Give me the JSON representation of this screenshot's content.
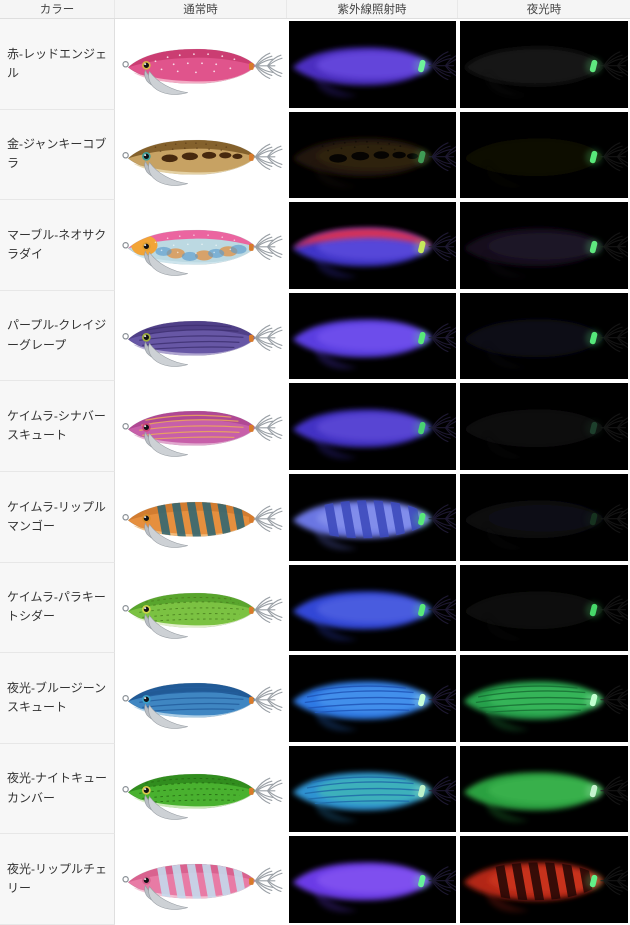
{
  "table": {
    "columns": [
      "カラー",
      "通常時",
      "紫外線照射時",
      "夜光時"
    ]
  },
  "colors": {
    "header_bg": "#f5f5f5",
    "label_bg": "#f7f7f7",
    "grid_border": "#e3e3e3",
    "photo_dark_bg": "#000000",
    "photo_light_bg": "#ffffff",
    "text": "#333333",
    "glow_spot_green": "#5fe87f"
  },
  "rows": [
    {
      "label": "赤-レッドエンジェル",
      "normal": {
        "body": "#e0548c",
        "back": "#c93b6f",
        "belly": "#f3b3c9",
        "pattern": "sparkle",
        "patternColor": "#ffffff",
        "eyeRing": "#d9b34a"
      },
      "uv": {
        "body": "#4b2fc0",
        "core": "#7a58ee",
        "pattern": "none",
        "patternColor": "",
        "spot": "#6ef29b"
      },
      "night": {
        "body": "#121212",
        "core": "#1c1c1c",
        "pattern": "none",
        "patternColor": "",
        "spot": "#5fe87f"
      }
    },
    {
      "label": "金-ジャンキーコブラ",
      "normal": {
        "body": "#c7a263",
        "back": "#7c5a26",
        "belly": "#e6d5a9",
        "pattern": "spots",
        "patternColor": "#47290e",
        "eyeRing": "#3f9f9a"
      },
      "uv": {
        "body": "#231708",
        "core": "#3a2a10",
        "pattern": "spots",
        "patternColor": "#060402",
        "spot": "#3f9a55"
      },
      "night": {
        "body": "#0b0906",
        "core": "#110d08",
        "pattern": "none",
        "patternColor": "",
        "spot": "#58e87a"
      }
    },
    {
      "label": "マーブル-ネオサクラダイ",
      "normal": {
        "body": "#bcd9e2",
        "back": "#ef5899",
        "belly": "#cfe6ee",
        "pattern": "marble",
        "patternColor": "#e08f41",
        "head": "#f2a437",
        "blob2": "#5b9bcc",
        "eyeRing": "#e0a030"
      },
      "uv": {
        "body": "#4135c8",
        "core": "#6a55e8",
        "pattern": "uvtop",
        "patternColor": "#e03050",
        "spot": "#c6e85c"
      },
      "night": {
        "body": "#150e1b",
        "core": "#221531",
        "pattern": "none",
        "patternColor": "",
        "spot": "#5fe87f"
      }
    },
    {
      "label": "パープル-クレイジーグレープ",
      "normal": {
        "body": "#6757a5",
        "back": "#4e3e85",
        "belly": "#b3a9d3",
        "pattern": "streaks",
        "patternColor": "#3f3172",
        "eyeRing": "#9fae3c"
      },
      "uv": {
        "body": "#5a3ce0",
        "core": "#7e5cf4",
        "pattern": "none",
        "patternColor": "",
        "spot": "#58e87a"
      },
      "night": {
        "body": "#0d0c13",
        "core": "#14121d",
        "pattern": "none",
        "patternColor": "",
        "spot": "#55e87a"
      }
    },
    {
      "label": "ケイムラ-シナバースキュート",
      "normal": {
        "body": "#c75fa9",
        "back": "#ad4691",
        "belly": "#e2aed0",
        "pattern": "streaks",
        "patternColor": "#eda95b",
        "eyeRing": "#cc4477"
      },
      "uv": {
        "body": "#4332c4",
        "core": "#6a55e0",
        "pattern": "none",
        "patternColor": "",
        "spot": "#49d173"
      },
      "night": {
        "body": "#0c090d",
        "core": "#120d12",
        "pattern": "none",
        "patternColor": "",
        "spot": "#1d3f2c"
      }
    },
    {
      "label": "ケイムラ-リップルマンゴー",
      "normal": {
        "body": "#e68f3e",
        "back": "#cf7a2f",
        "belly": "#f1bd7e",
        "pattern": "stripes",
        "patternColor": "#2f6773",
        "eyeRing": "#d98e2b"
      },
      "uv": {
        "body": "#6a76e2",
        "core": "#93a0f2",
        "pattern": "stripes",
        "patternColor": "#3c49bb",
        "spot": "#58e87a"
      },
      "night": {
        "body": "#0a0a0f",
        "core": "#10101a",
        "pattern": "none",
        "patternColor": "",
        "spot": "#16321f"
      }
    },
    {
      "label": "ケイムラ-パラキートシダー",
      "normal": {
        "body": "#7bc242",
        "back": "#55a22b",
        "belly": "#e9f2d6",
        "pattern": "dashes",
        "patternColor": "#4a7f1e",
        "eyeRing": "#cdd64a"
      },
      "uv": {
        "body": "#3347d6",
        "core": "#5a6ee8",
        "pattern": "none",
        "patternColor": "",
        "spot": "#58e87a"
      },
      "night": {
        "body": "#0a0c08",
        "core": "#0f130c",
        "pattern": "none",
        "patternColor": "",
        "spot": "#46d869"
      }
    },
    {
      "label": "夜光-ブルージーンスキュート",
      "normal": {
        "body": "#3f86c2",
        "back": "#1e5591",
        "belly": "#b2d3e8",
        "pattern": "streaks",
        "patternColor": "#245e9e",
        "eyeRing": "#3aa0c8"
      },
      "uv": {
        "body": "#2e79e4",
        "core": "#55a3f0",
        "pattern": "streaks",
        "patternColor": "#1f55b8",
        "spot": "#c8ffd8"
      },
      "night": {
        "body": "#28a04c",
        "core": "#3fc465",
        "pattern": "streaks",
        "patternColor": "#187034",
        "spot": "#c2ffd0"
      }
    },
    {
      "label": "夜光-ナイトキューカンバー",
      "normal": {
        "body": "#49b12f",
        "back": "#2f8a1d",
        "belly": "#d5edc2",
        "pattern": "dashes",
        "patternColor": "#256c12",
        "eyeRing": "#d9c94a"
      },
      "uv": {
        "body": "#2f93d2",
        "core": "#49c8a8",
        "pattern": "streaks",
        "patternColor": "#1f6aa8",
        "spot": "#bdf2c9"
      },
      "night": {
        "body": "#2ba03f",
        "core": "#41bd58",
        "pattern": "none",
        "patternColor": "",
        "spot": "#c6f2cf"
      }
    },
    {
      "label": "夜光-リップルチェリー",
      "normal": {
        "body": "#e87ba5",
        "back": "#d75f8d",
        "belly": "#f2c3d5",
        "pattern": "stripes",
        "patternColor": "#c3dcee",
        "eyeRing": "#d75f8d"
      },
      "uv": {
        "body": "#6a3ae6",
        "core": "#8f62f6",
        "pattern": "none",
        "patternColor": "",
        "spot": "#66f09a"
      },
      "night": {
        "body": "#b22516",
        "core": "#d93a22",
        "pattern": "stripes",
        "patternColor": "#240705",
        "spot": "#62f088"
      }
    }
  ]
}
